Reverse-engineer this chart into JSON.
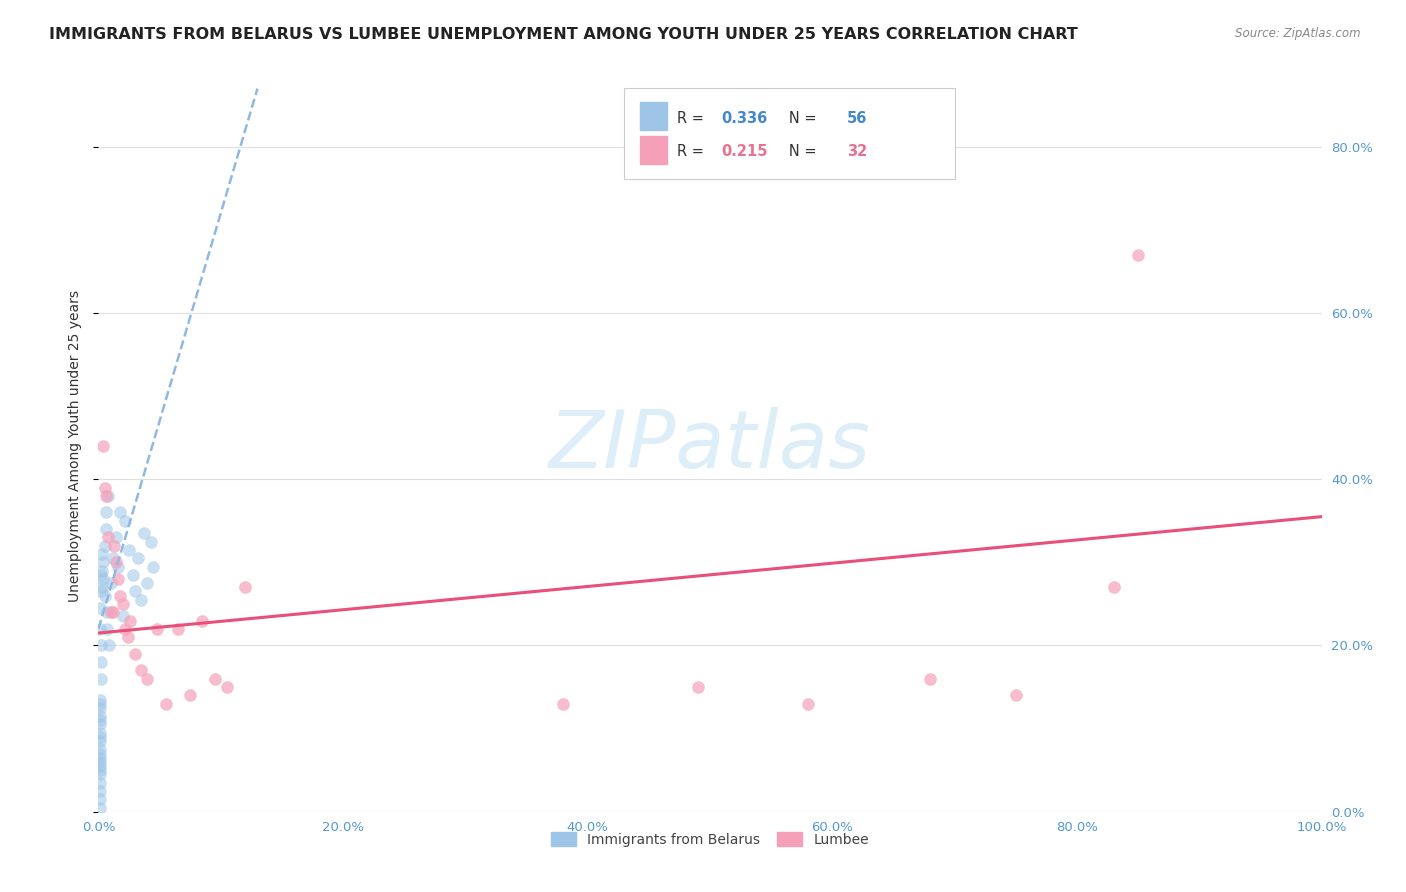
{
  "title": "IMMIGRANTS FROM BELARUS VS LUMBEE UNEMPLOYMENT AMONG YOUTH UNDER 25 YEARS CORRELATION CHART",
  "source": "Source: ZipAtlas.com",
  "ylabel": "Unemployment Among Youth under 25 years",
  "blue_color": "#9ec5e8",
  "pink_color": "#f5a0b8",
  "blue_line_color": "#90b8e0",
  "pink_line_color": "#e8507a",
  "watermark_color": "#ddeef8",
  "background_color": "#ffffff",
  "grid_color": "#e0e0e0",
  "blue_scatter_x": [
    0.001,
    0.001,
    0.001,
    0.001,
    0.001,
    0.001,
    0.001,
    0.001,
    0.001,
    0.001,
    0.001,
    0.001,
    0.001,
    0.001,
    0.001,
    0.001,
    0.001,
    0.001,
    0.001,
    0.001,
    0.0015,
    0.0015,
    0.002,
    0.002,
    0.002,
    0.002,
    0.002,
    0.003,
    0.003,
    0.003,
    0.004,
    0.004,
    0.005,
    0.005,
    0.006,
    0.006,
    0.007,
    0.007,
    0.008,
    0.009,
    0.01,
    0.012,
    0.014,
    0.016,
    0.018,
    0.02,
    0.022,
    0.025,
    0.028,
    0.03,
    0.032,
    0.035,
    0.037,
    0.04,
    0.043,
    0.045
  ],
  "blue_scatter_y": [
    0.005,
    0.015,
    0.025,
    0.035,
    0.045,
    0.055,
    0.065,
    0.075,
    0.085,
    0.095,
    0.105,
    0.115,
    0.125,
    0.135,
    0.07,
    0.09,
    0.11,
    0.13,
    0.05,
    0.06,
    0.22,
    0.245,
    0.265,
    0.285,
    0.16,
    0.18,
    0.2,
    0.27,
    0.29,
    0.31,
    0.3,
    0.28,
    0.32,
    0.26,
    0.34,
    0.36,
    0.24,
    0.22,
    0.38,
    0.2,
    0.275,
    0.305,
    0.33,
    0.295,
    0.36,
    0.235,
    0.35,
    0.315,
    0.285,
    0.265,
    0.305,
    0.255,
    0.335,
    0.275,
    0.325,
    0.295
  ],
  "pink_scatter_x": [
    0.004,
    0.005,
    0.006,
    0.008,
    0.01,
    0.012,
    0.013,
    0.014,
    0.016,
    0.018,
    0.02,
    0.022,
    0.024,
    0.026,
    0.03,
    0.035,
    0.04,
    0.048,
    0.055,
    0.065,
    0.075,
    0.085,
    0.095,
    0.105,
    0.12,
    0.38,
    0.49,
    0.58,
    0.68,
    0.75,
    0.83,
    0.85
  ],
  "pink_scatter_y": [
    0.44,
    0.39,
    0.38,
    0.33,
    0.24,
    0.24,
    0.32,
    0.3,
    0.28,
    0.26,
    0.25,
    0.22,
    0.21,
    0.23,
    0.19,
    0.17,
    0.16,
    0.22,
    0.13,
    0.22,
    0.14,
    0.23,
    0.16,
    0.15,
    0.27,
    0.13,
    0.15,
    0.13,
    0.16,
    0.14,
    0.27,
    0.67
  ],
  "blue_trendline_x": [
    0.0,
    0.13
  ],
  "blue_trendline_y": [
    0.22,
    0.87
  ],
  "pink_trendline_x": [
    0.0,
    1.0
  ],
  "pink_trendline_y": [
    0.215,
    0.355
  ],
  "xlim": [
    0.0,
    1.0
  ],
  "ylim": [
    0.0,
    0.88
  ],
  "xticks": [
    0.0,
    0.2,
    0.4,
    0.6,
    0.8,
    1.0
  ],
  "xticklabels": [
    "0.0%",
    "20.0%",
    "40.0%",
    "60.0%",
    "80.0%",
    "100.0%"
  ],
  "yticks_right": [
    0.0,
    0.2,
    0.4,
    0.6,
    0.8
  ],
  "yticklabels_right": [
    "0.0%",
    "20.0%",
    "40.0%",
    "60.0%",
    "80.0%"
  ],
  "R_blue": "0.336",
  "N_blue": "56",
  "R_pink": "0.215",
  "N_pink": "32",
  "legend_labels": [
    "Immigrants from Belarus",
    "Lumbee"
  ],
  "scatter_size": 75,
  "tick_color": "#5599cc",
  "title_fontsize": 11.5,
  "label_fontsize": 10,
  "tick_fontsize": 9.5
}
